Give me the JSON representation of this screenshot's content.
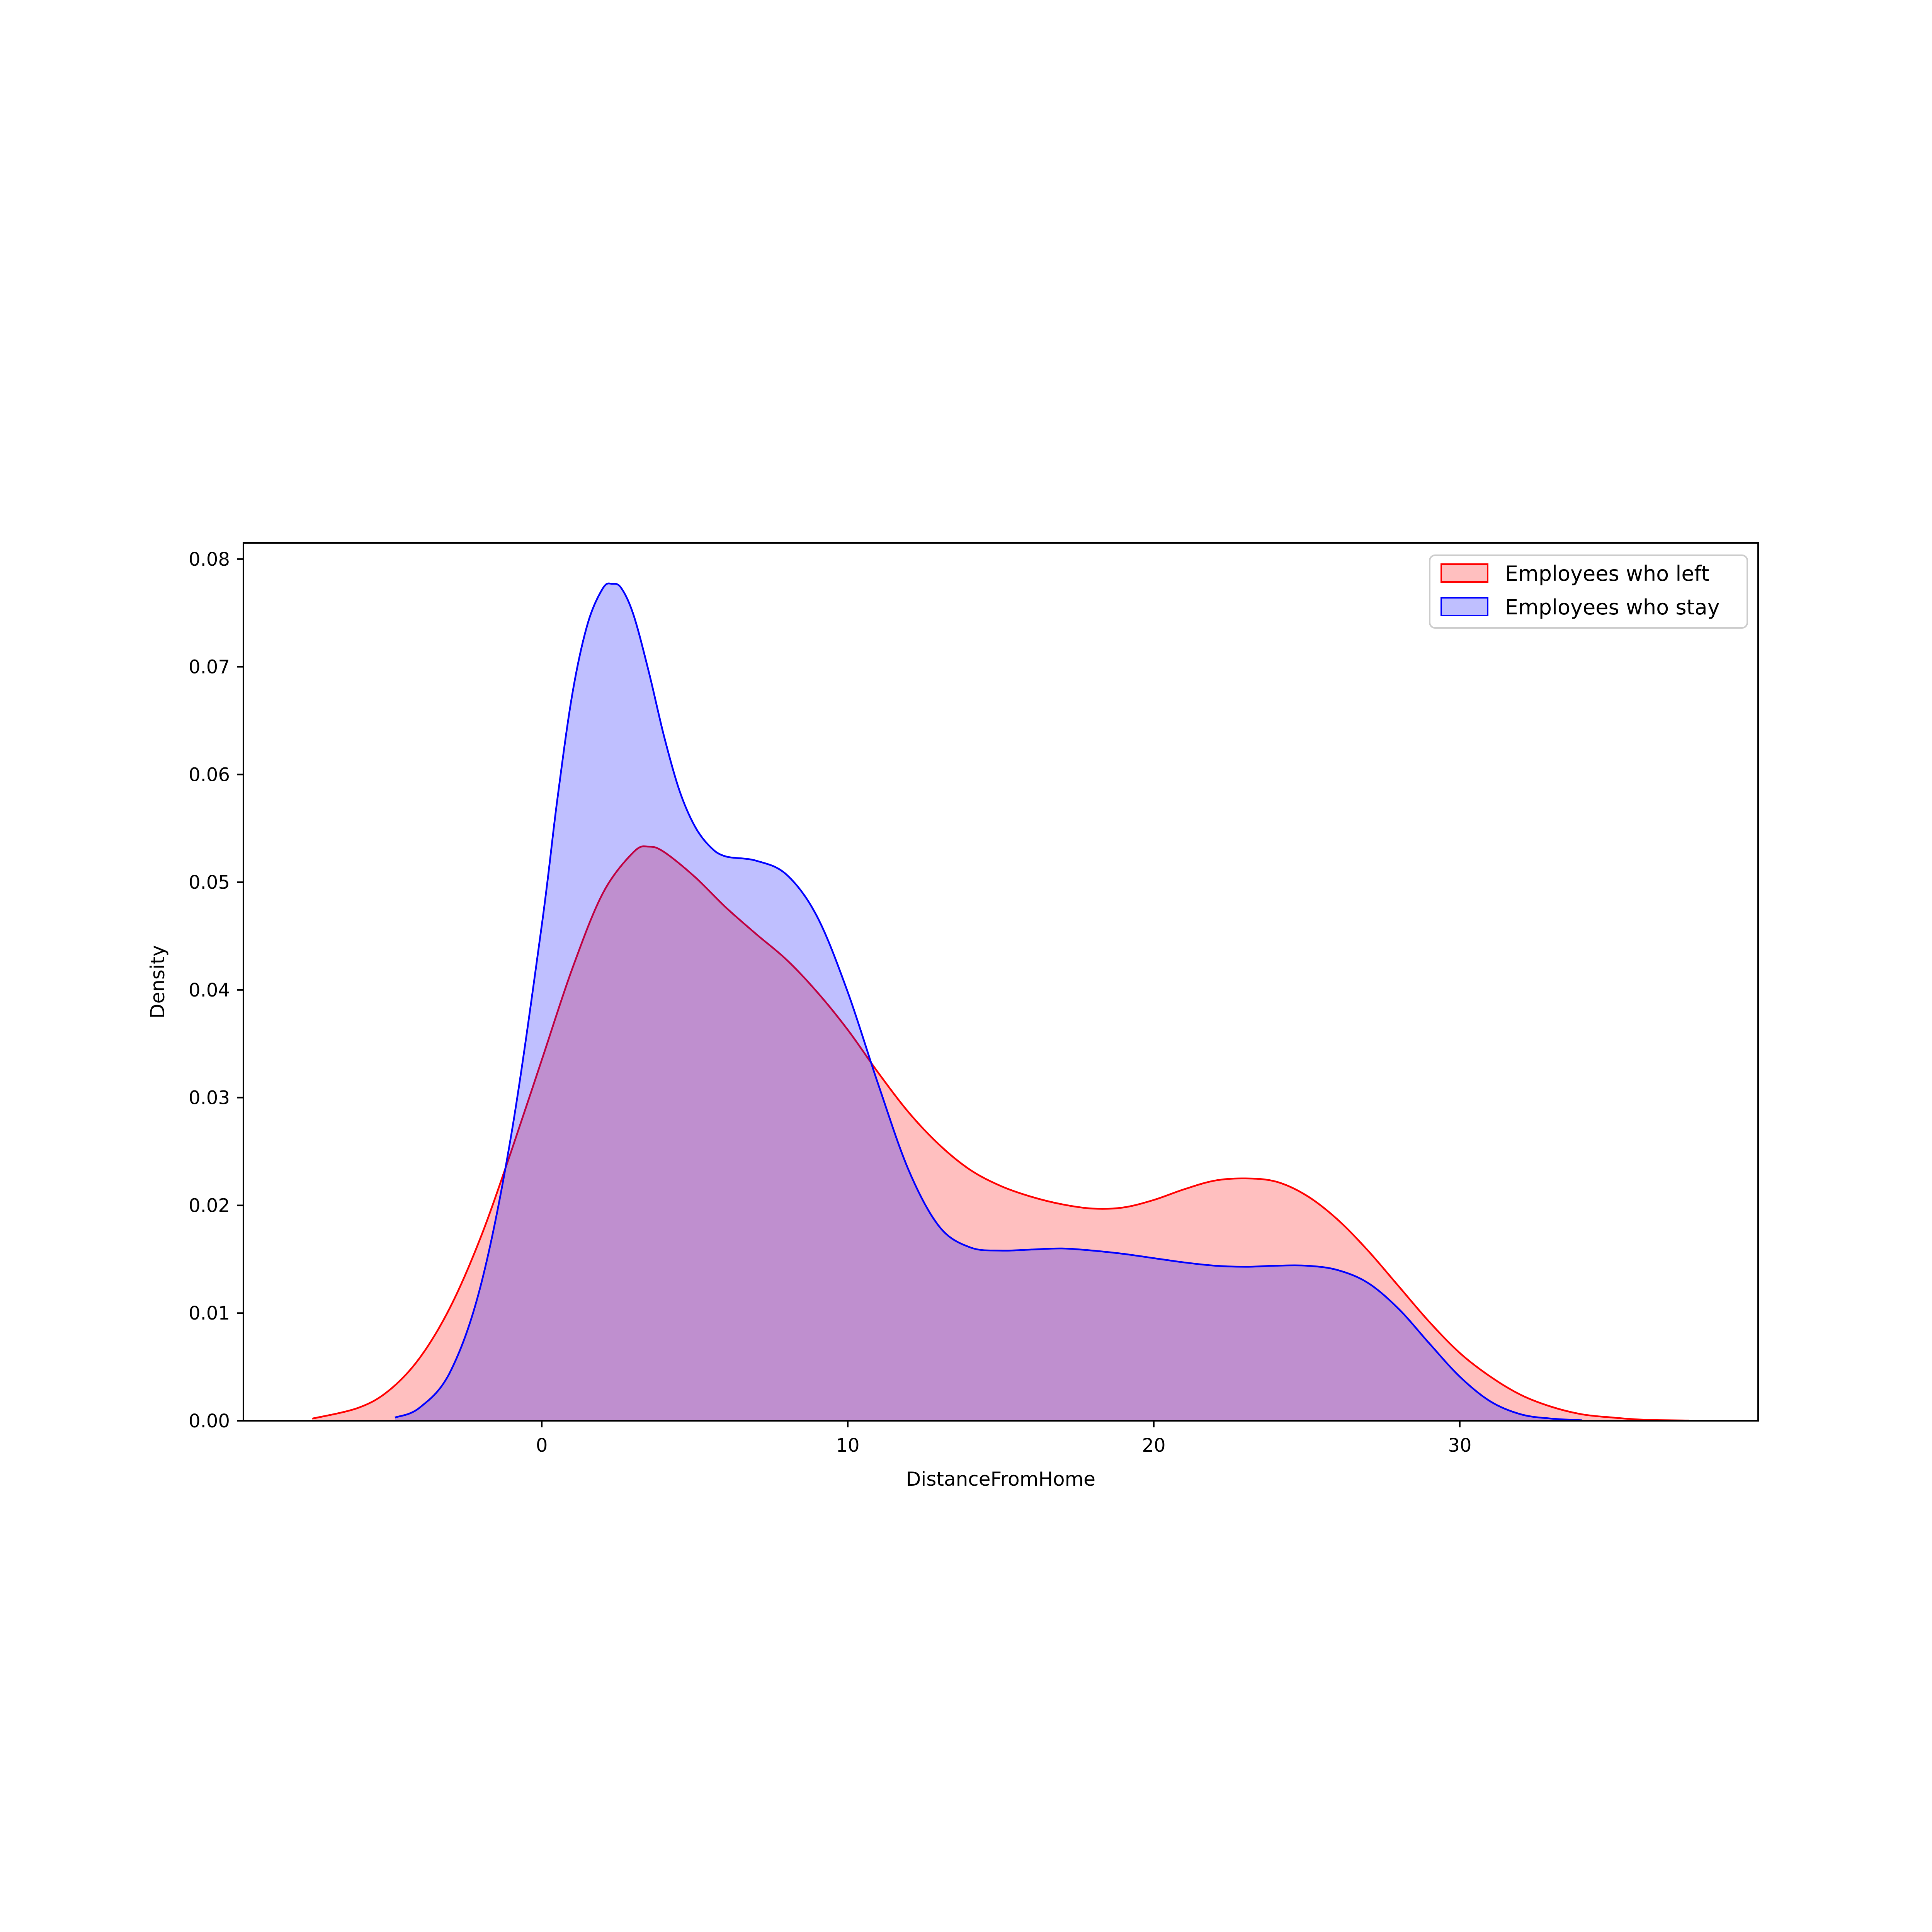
{
  "chart_data": {
    "type": "area",
    "title": "",
    "xlabel": "DistanceFromHome",
    "ylabel": "Density",
    "xlim": [
      -9.75,
      39.75
    ],
    "ylim": [
      0,
      0.0815
    ],
    "xticks": [
      0,
      10,
      20,
      30
    ],
    "yticks": [
      0.0,
      0.01,
      0.02,
      0.03,
      0.04,
      0.05,
      0.06,
      0.07,
      0.08
    ],
    "ytick_labels": [
      "0.00",
      "0.01",
      "0.02",
      "0.03",
      "0.04",
      "0.05",
      "0.06",
      "0.07",
      "0.08"
    ],
    "grid": false,
    "legend_position": "top-right",
    "series": [
      {
        "name": "Employees who left",
        "line_color": "#ff0000",
        "fill_color": "#ffbfbf",
        "points": [
          [
            -7.5,
            0.0002
          ],
          [
            -6,
            0.0012
          ],
          [
            -5,
            0.0028
          ],
          [
            -4,
            0.0058
          ],
          [
            -3,
            0.0105
          ],
          [
            -2,
            0.017
          ],
          [
            -1,
            0.025
          ],
          [
            0,
            0.0335
          ],
          [
            1,
            0.042
          ],
          [
            2,
            0.049
          ],
          [
            3,
            0.0528
          ],
          [
            3.5,
            0.0533
          ],
          [
            4,
            0.0528
          ],
          [
            5,
            0.0505
          ],
          [
            6,
            0.0477
          ],
          [
            7,
            0.0452
          ],
          [
            8,
            0.0428
          ],
          [
            9,
            0.0398
          ],
          [
            10,
            0.0363
          ],
          [
            11,
            0.0323
          ],
          [
            12,
            0.0286
          ],
          [
            13,
            0.0256
          ],
          [
            14,
            0.0233
          ],
          [
            15,
            0.0218
          ],
          [
            16,
            0.0208
          ],
          [
            17,
            0.0201
          ],
          [
            18,
            0.0197
          ],
          [
            19,
            0.0198
          ],
          [
            20,
            0.0205
          ],
          [
            21,
            0.0215
          ],
          [
            22,
            0.0223
          ],
          [
            23,
            0.0225
          ],
          [
            24,
            0.0222
          ],
          [
            25,
            0.0209
          ],
          [
            26,
            0.0187
          ],
          [
            27,
            0.0158
          ],
          [
            28,
            0.0125
          ],
          [
            29,
            0.0092
          ],
          [
            30,
            0.0063
          ],
          [
            31,
            0.0041
          ],
          [
            32,
            0.0024
          ],
          [
            33,
            0.0013
          ],
          [
            34,
            0.0006
          ],
          [
            35,
            0.0003
          ],
          [
            36,
            0.0001
          ],
          [
            37.5,
            2e-05
          ]
        ]
      },
      {
        "name": "Employees who stay",
        "line_color": "#0000ff",
        "fill_color": "#bfbfff",
        "points": [
          [
            -4.8,
            0.0003
          ],
          [
            -4,
            0.0012
          ],
          [
            -3,
            0.0045
          ],
          [
            -2,
            0.0125
          ],
          [
            -1,
            0.0265
          ],
          [
            0,
            0.046
          ],
          [
            0.5,
            0.0575
          ],
          [
            1,
            0.0675
          ],
          [
            1.5,
            0.074
          ],
          [
            2,
            0.0773
          ],
          [
            2.3,
            0.0777
          ],
          [
            2.6,
            0.0773
          ],
          [
            3,
            0.0748
          ],
          [
            3.5,
            0.0695
          ],
          [
            4,
            0.0635
          ],
          [
            4.5,
            0.0585
          ],
          [
            5,
            0.0552
          ],
          [
            5.5,
            0.0533
          ],
          [
            6,
            0.0524
          ],
          [
            7,
            0.052
          ],
          [
            8,
            0.0507
          ],
          [
            9,
            0.0468
          ],
          [
            10,
            0.0398
          ],
          [
            11,
            0.0312
          ],
          [
            12,
            0.0232
          ],
          [
            13,
            0.018
          ],
          [
            14,
            0.0161
          ],
          [
            15,
            0.0158
          ],
          [
            16,
            0.0159
          ],
          [
            17,
            0.016
          ],
          [
            18,
            0.0158
          ],
          [
            19,
            0.0155
          ],
          [
            20,
            0.0151
          ],
          [
            21,
            0.0147
          ],
          [
            22,
            0.0144
          ],
          [
            23,
            0.0143
          ],
          [
            24,
            0.0144
          ],
          [
            25,
            0.0144
          ],
          [
            26,
            0.014
          ],
          [
            27,
            0.0128
          ],
          [
            28,
            0.0104
          ],
          [
            29,
            0.0072
          ],
          [
            30,
            0.0041
          ],
          [
            31,
            0.0018
          ],
          [
            32,
            0.0006
          ],
          [
            33,
            0.0002
          ],
          [
            34,
            5e-05
          ]
        ]
      }
    ]
  }
}
